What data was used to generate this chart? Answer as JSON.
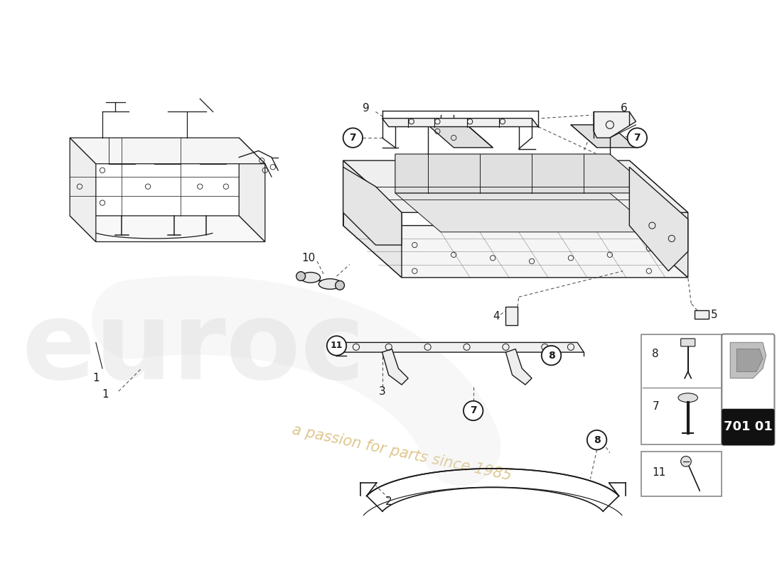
{
  "background_color": "#ffffff",
  "line_color": "#1a1a1a",
  "dashed_color": "#444444",
  "watermark_color": "#cccccc",
  "watermark_text": "euroc",
  "passion_text": "a passion for parts since 1985",
  "passion_color": "#c8a040",
  "part_box_bg": "#000000",
  "part_box_text": "701 01",
  "lw_main": 1.0,
  "lw_thick": 1.5,
  "lw_thin": 0.6
}
